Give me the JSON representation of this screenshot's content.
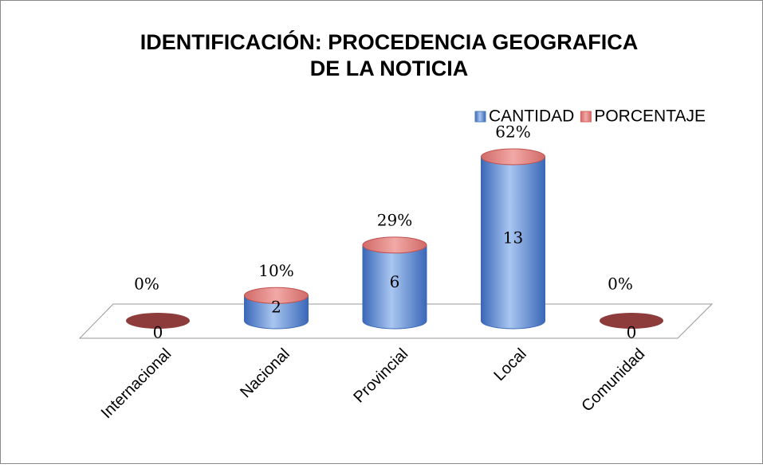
{
  "chart_data": {
    "type": "bar3d",
    "title": "IDENTIFICACIÓN: PROCEDENCIA GEOGRAFICA DE LA NOTICIA",
    "categories": [
      "Internacional",
      "Nacional",
      "Provincial",
      "Local",
      "Comunidad"
    ],
    "series": [
      {
        "name": "CANTIDAD",
        "color": "#4f81bd",
        "values": [
          0,
          2,
          6,
          13,
          0
        ]
      },
      {
        "name": "PORCENTAJE",
        "color": "#d9605c",
        "values": [
          0,
          10,
          29,
          62,
          0
        ],
        "value_labels": [
          "0%",
          "10%",
          "29%",
          "62%",
          "0%"
        ]
      }
    ],
    "legend": "top-right"
  }
}
